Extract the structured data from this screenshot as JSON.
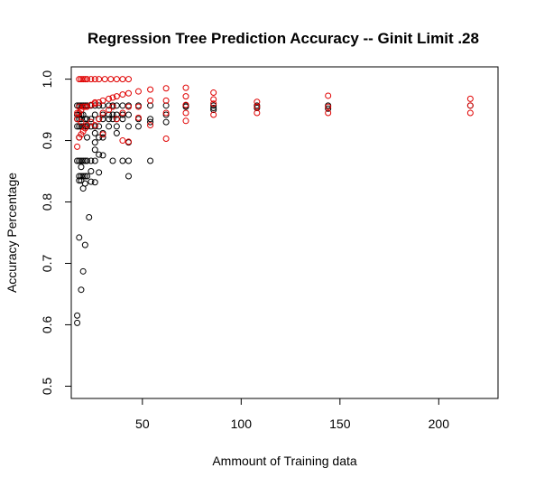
{
  "chart_data": {
    "type": "scatter",
    "title": "Regression Tree Prediction Accuracy -- Ginit Limit .28",
    "xlabel": "Ammount of Training data",
    "ylabel": "Accuracy Percentage",
    "xlim": [
      14,
      230
    ],
    "ylim": [
      0.48,
      1.02
    ],
    "xticks": [
      50,
      100,
      150,
      200
    ],
    "xtick_labels": [
      "50",
      "100",
      "150",
      "200"
    ],
    "yticks": [
      0.5,
      0.6,
      0.7,
      0.8,
      0.9,
      1.0
    ],
    "ytick_labels": [
      "0.5",
      "0.6",
      "0.7",
      "0.8",
      "0.9",
      "1.0"
    ],
    "grid": false,
    "series": [
      {
        "color": "#000000",
        "points": [
          [
            17,
            0.603
          ],
          [
            17,
            0.615
          ],
          [
            18,
            0.742
          ],
          [
            19,
            0.657
          ],
          [
            20,
            0.687
          ],
          [
            21,
            0.73
          ],
          [
            23,
            0.775
          ],
          [
            17,
            0.957
          ],
          [
            17,
            0.942
          ],
          [
            17,
            0.935
          ],
          [
            17,
            0.923
          ],
          [
            17,
            0.867
          ],
          [
            18,
            0.957
          ],
          [
            18,
            0.942
          ],
          [
            18,
            0.935
          ],
          [
            18,
            0.923
          ],
          [
            18,
            0.905
          ],
          [
            18,
            0.867
          ],
          [
            18,
            0.842
          ],
          [
            18,
            0.835
          ],
          [
            19,
            0.957
          ],
          [
            19,
            0.942
          ],
          [
            19,
            0.935
          ],
          [
            19,
            0.923
          ],
          [
            19,
            0.867
          ],
          [
            19,
            0.857
          ],
          [
            19,
            0.842
          ],
          [
            19,
            0.835
          ],
          [
            20,
            0.957
          ],
          [
            20,
            0.942
          ],
          [
            20,
            0.923
          ],
          [
            20,
            0.867
          ],
          [
            20,
            0.842
          ],
          [
            20,
            0.822
          ],
          [
            21,
            0.957
          ],
          [
            21,
            0.935
          ],
          [
            21,
            0.923
          ],
          [
            21,
            0.867
          ],
          [
            21,
            0.842
          ],
          [
            21,
            0.83
          ],
          [
            22,
            0.957
          ],
          [
            22,
            0.935
          ],
          [
            22,
            0.923
          ],
          [
            22,
            0.905
          ],
          [
            22,
            0.867
          ],
          [
            22,
            0.842
          ],
          [
            24,
            0.957
          ],
          [
            24,
            0.935
          ],
          [
            24,
            0.923
          ],
          [
            24,
            0.867
          ],
          [
            24,
            0.85
          ],
          [
            24,
            0.833
          ],
          [
            26,
            0.957
          ],
          [
            26,
            0.942
          ],
          [
            26,
            0.923
          ],
          [
            26,
            0.912
          ],
          [
            26,
            0.897
          ],
          [
            26,
            0.885
          ],
          [
            26,
            0.867
          ],
          [
            26,
            0.832
          ],
          [
            28,
            0.957
          ],
          [
            28,
            0.935
          ],
          [
            28,
            0.923
          ],
          [
            28,
            0.905
          ],
          [
            28,
            0.877
          ],
          [
            28,
            0.848
          ],
          [
            30,
            0.957
          ],
          [
            30,
            0.942
          ],
          [
            30,
            0.935
          ],
          [
            30,
            0.912
          ],
          [
            30,
            0.905
          ],
          [
            30,
            0.876
          ],
          [
            33,
            0.957
          ],
          [
            33,
            0.942
          ],
          [
            33,
            0.935
          ],
          [
            33,
            0.923
          ],
          [
            35,
            0.957
          ],
          [
            35,
            0.942
          ],
          [
            35,
            0.935
          ],
          [
            35,
            0.867
          ],
          [
            37,
            0.957
          ],
          [
            37,
            0.942
          ],
          [
            37,
            0.935
          ],
          [
            37,
            0.923
          ],
          [
            37,
            0.912
          ],
          [
            40,
            0.957
          ],
          [
            40,
            0.942
          ],
          [
            40,
            0.935
          ],
          [
            40,
            0.867
          ],
          [
            43,
            0.957
          ],
          [
            43,
            0.942
          ],
          [
            43,
            0.923
          ],
          [
            43,
            0.897
          ],
          [
            43,
            0.867
          ],
          [
            43,
            0.842
          ],
          [
            48,
            0.957
          ],
          [
            48,
            0.935
          ],
          [
            48,
            0.923
          ],
          [
            54,
            0.957
          ],
          [
            54,
            0.935
          ],
          [
            54,
            0.93
          ],
          [
            54,
            0.867
          ],
          [
            62,
            0.957
          ],
          [
            62,
            0.942
          ],
          [
            62,
            0.93
          ],
          [
            72,
            0.957
          ],
          [
            72,
            0.955
          ],
          [
            86,
            0.957
          ],
          [
            86,
            0.953
          ],
          [
            86,
            0.95
          ],
          [
            108,
            0.957
          ],
          [
            108,
            0.953
          ],
          [
            144,
            0.957
          ],
          [
            144,
            0.952
          ],
          [
            216,
            0.957
          ]
        ]
      },
      {
        "color": "#e00000",
        "points": [
          [
            18,
            1.0
          ],
          [
            19,
            1.0
          ],
          [
            20,
            1.0
          ],
          [
            21,
            1.0
          ],
          [
            22,
            1.0
          ],
          [
            24,
            1.0
          ],
          [
            26,
            1.0
          ],
          [
            28,
            1.0
          ],
          [
            31,
            1.0
          ],
          [
            34,
            1.0
          ],
          [
            37,
            1.0
          ],
          [
            40,
            1.0
          ],
          [
            43,
            1.0
          ],
          [
            17,
            0.89
          ],
          [
            17,
            0.935
          ],
          [
            17,
            0.945
          ],
          [
            18,
            0.905
          ],
          [
            18,
            0.945
          ],
          [
            18,
            0.955
          ],
          [
            19,
            0.91
          ],
          [
            19,
            0.93
          ],
          [
            19,
            0.95
          ],
          [
            20,
            0.915
          ],
          [
            20,
            0.955
          ],
          [
            21,
            0.92
          ],
          [
            21,
            0.955
          ],
          [
            22,
            0.925
          ],
          [
            22,
            0.955
          ],
          [
            24,
            0.93
          ],
          [
            24,
            0.958
          ],
          [
            26,
            0.925
          ],
          [
            26,
            0.96
          ],
          [
            26,
            0.962
          ],
          [
            28,
            0.935
          ],
          [
            28,
            0.962
          ],
          [
            30,
            0.945
          ],
          [
            30,
            0.965
          ],
          [
            30,
            0.91
          ],
          [
            33,
            0.95
          ],
          [
            33,
            0.968
          ],
          [
            35,
            0.955
          ],
          [
            35,
            0.97
          ],
          [
            37,
            0.935
          ],
          [
            37,
            0.972
          ],
          [
            40,
            0.945
          ],
          [
            40,
            0.975
          ],
          [
            40,
            0.9
          ],
          [
            43,
            0.955
          ],
          [
            43,
            0.977
          ],
          [
            43,
            0.898
          ],
          [
            48,
            0.955
          ],
          [
            48,
            0.98
          ],
          [
            48,
            0.937
          ],
          [
            54,
            0.965
          ],
          [
            54,
            0.983
          ],
          [
            54,
            0.925
          ],
          [
            62,
            0.965
          ],
          [
            62,
            0.985
          ],
          [
            62,
            0.945
          ],
          [
            62,
            0.903
          ],
          [
            72,
            0.958
          ],
          [
            72,
            0.986
          ],
          [
            72,
            0.945
          ],
          [
            72,
            0.932
          ],
          [
            72,
            0.972
          ],
          [
            86,
            0.96
          ],
          [
            86,
            0.978
          ],
          [
            86,
            0.942
          ],
          [
            86,
            0.967
          ],
          [
            108,
            0.955
          ],
          [
            108,
            0.963
          ],
          [
            108,
            0.945
          ],
          [
            144,
            0.955
          ],
          [
            144,
            0.973
          ],
          [
            144,
            0.945
          ],
          [
            216,
            0.957
          ],
          [
            216,
            0.968
          ],
          [
            216,
            0.945
          ]
        ]
      }
    ]
  }
}
